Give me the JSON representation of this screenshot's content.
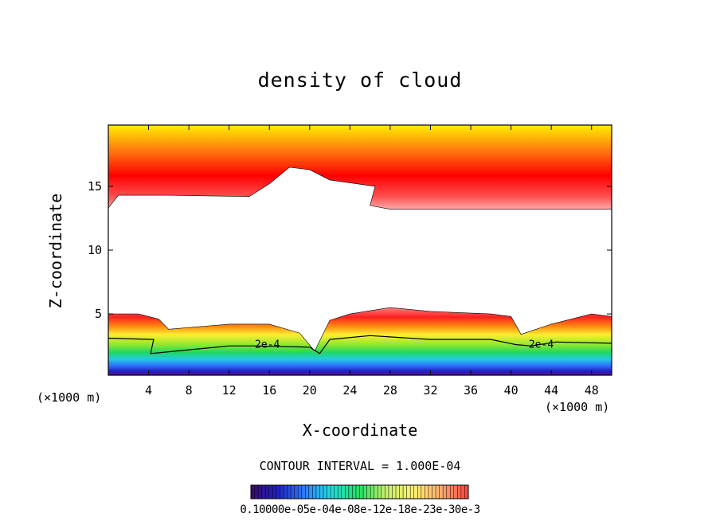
{
  "chart_data": {
    "type": "heatmap",
    "title": "density of cloud",
    "xlabel": "X-coordinate",
    "ylabel": "Z-coordinate",
    "x_unit_left": "(×1000 m)",
    "x_unit_right": "(×1000 m)",
    "xlim": [
      0,
      50
    ],
    "ylim": [
      0.2,
      19.8
    ],
    "x_ticks": [
      4,
      8,
      12,
      16,
      20,
      24,
      28,
      32,
      36,
      40,
      44,
      48
    ],
    "y_ticks": [
      5,
      10,
      15
    ],
    "contour_interval": "CONTOUR INTERVAL = 1.000E-04",
    "colorbar_label": "0.10000e-05e-04e-08e-12e-18e-23e-30e-3",
    "contour_labels": [
      {
        "text": "2e-4",
        "x": 15.8,
        "z": 2.6
      },
      {
        "text": "2e-4",
        "x": 43.0,
        "z": 2.6
      }
    ],
    "upper_cloud_base": [
      {
        "x": 0.0,
        "z": 13.3
      },
      {
        "x": 1.0,
        "z": 14.3
      },
      {
        "x": 6.0,
        "z": 14.3
      },
      {
        "x": 14.0,
        "z": 14.2
      },
      {
        "x": 16.0,
        "z": 15.2
      },
      {
        "x": 18.0,
        "z": 16.5
      },
      {
        "x": 20.0,
        "z": 16.3
      },
      {
        "x": 22.0,
        "z": 15.5
      },
      {
        "x": 26.5,
        "z": 15.0
      },
      {
        "x": 26.0,
        "z": 13.5
      },
      {
        "x": 28.0,
        "z": 13.2
      },
      {
        "x": 40.0,
        "z": 13.2
      },
      {
        "x": 50.0,
        "z": 13.2
      }
    ],
    "lower_cloud_top": [
      {
        "x": 0.0,
        "z": 5.0
      },
      {
        "x": 3.0,
        "z": 5.0
      },
      {
        "x": 5.0,
        "z": 4.6
      },
      {
        "x": 6.0,
        "z": 3.8
      },
      {
        "x": 12.0,
        "z": 4.2
      },
      {
        "x": 16.0,
        "z": 4.2
      },
      {
        "x": 19.0,
        "z": 3.5
      },
      {
        "x": 20.5,
        "z": 2.1
      },
      {
        "x": 22.0,
        "z": 4.5
      },
      {
        "x": 24.0,
        "z": 5.0
      },
      {
        "x": 28.0,
        "z": 5.5
      },
      {
        "x": 32.0,
        "z": 5.2
      },
      {
        "x": 38.0,
        "z": 5.0
      },
      {
        "x": 40.0,
        "z": 4.8
      },
      {
        "x": 41.0,
        "z": 3.4
      },
      {
        "x": 44.0,
        "z": 4.2
      },
      {
        "x": 48.0,
        "z": 5.0
      },
      {
        "x": 50.0,
        "z": 4.8
      }
    ],
    "contour_2e4": [
      {
        "x": 0.0,
        "z": 3.1
      },
      {
        "x": 4.5,
        "z": 3.0
      },
      {
        "x": 4.2,
        "z": 1.9
      },
      {
        "x": 12.0,
        "z": 2.5
      },
      {
        "x": 14.5,
        "z": 2.5
      },
      {
        "x": 20.0,
        "z": 2.4
      },
      {
        "x": 21.0,
        "z": 1.9
      },
      {
        "x": 22.0,
        "z": 3.0
      },
      {
        "x": 26.0,
        "z": 3.3
      },
      {
        "x": 32.0,
        "z": 3.0
      },
      {
        "x": 38.0,
        "z": 3.0
      },
      {
        "x": 40.5,
        "z": 2.6
      },
      {
        "x": 42.0,
        "z": 2.5
      },
      {
        "x": 44.5,
        "z": 2.8
      },
      {
        "x": 50.0,
        "z": 2.7
      }
    ],
    "colormap": [
      "#3a0a6a",
      "#2020c0",
      "#2f7fff",
      "#22dddd",
      "#22e060",
      "#9ee030",
      "#ffff55",
      "#ffb020",
      "#ff3020",
      "#ff0000"
    ]
  }
}
